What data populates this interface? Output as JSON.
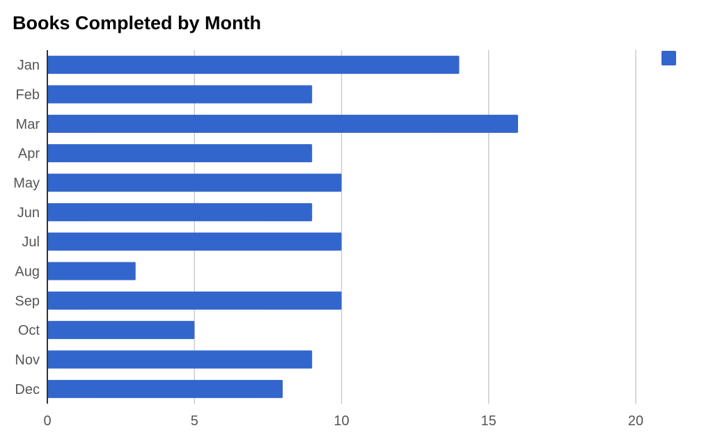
{
  "chart_data": {
    "type": "bar",
    "orientation": "horizontal",
    "title": "Books Completed by Month",
    "xlabel": "",
    "ylabel": "",
    "categories": [
      "Jan",
      "Feb",
      "Mar",
      "Apr",
      "May",
      "Jun",
      "Jul",
      "Aug",
      "Sep",
      "Oct",
      "Nov",
      "Dec"
    ],
    "values": [
      14,
      9,
      16,
      9,
      10,
      9,
      10,
      3,
      10,
      5,
      9,
      8
    ],
    "xlim": [
      0,
      22
    ],
    "xticks": [
      0,
      5,
      10,
      15,
      20
    ],
    "grid": true,
    "legend": {
      "position": "top-right",
      "entries": [
        ""
      ]
    },
    "colors": {
      "bar": "#3366cc",
      "grid": "#cccccc",
      "axis": "#333333",
      "label": "#555555"
    }
  }
}
